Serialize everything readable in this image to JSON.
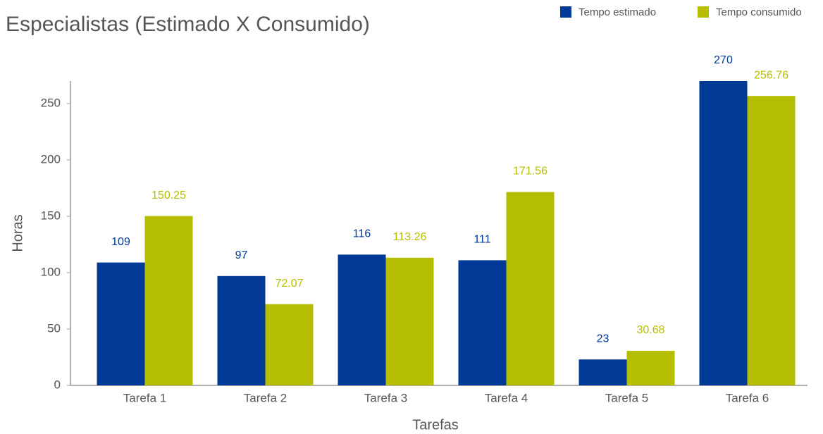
{
  "chart_data": {
    "type": "bar",
    "title": "Especialistas (Estimado X Consumido)",
    "xlabel": "Tarefas",
    "ylabel": "Horas",
    "categories": [
      "Tarefa 1",
      "Tarefa 2",
      "Tarefa 3",
      "Tarefa 4",
      "Tarefa 5",
      "Tarefa 6"
    ],
    "series": [
      {
        "name": "Tempo estimado",
        "color": "#003a96",
        "values": [
          109,
          97,
          116,
          111,
          23,
          270
        ]
      },
      {
        "name": "Tempo consumido",
        "color": "#b5be00",
        "values": [
          150.25,
          72.07,
          113.26,
          171.56,
          30.68,
          256.76
        ]
      }
    ],
    "ylim": [
      0,
      270
    ],
    "yticks": [
      0,
      50,
      100,
      150,
      200,
      250
    ],
    "grid": false,
    "legend": "top-right"
  }
}
